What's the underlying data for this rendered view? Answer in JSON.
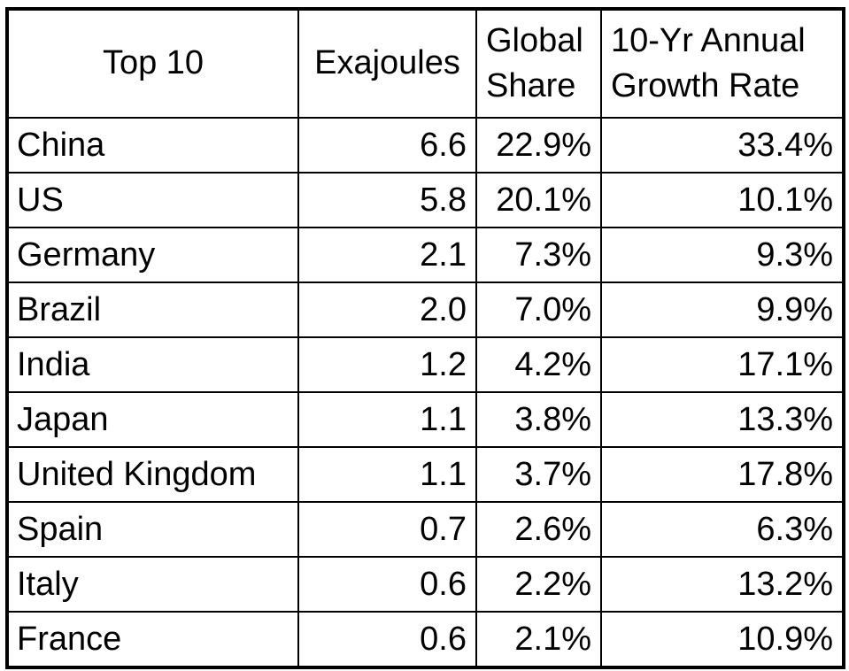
{
  "table": {
    "columns": [
      {
        "key": "country",
        "label": "Top 10",
        "align": "left"
      },
      {
        "key": "exajoules",
        "label": "Exajoules",
        "align": "num"
      },
      {
        "key": "global_share",
        "label": "Global Share",
        "align": "num"
      },
      {
        "key": "growth_rate",
        "label": "10-Yr Annual Growth Rate",
        "align": "num"
      }
    ],
    "rows": [
      {
        "country": "China",
        "exajoules": "6.6",
        "global_share": "22.9%",
        "growth_rate": "33.4%"
      },
      {
        "country": "US",
        "exajoules": "5.8",
        "global_share": "20.1%",
        "growth_rate": "10.1%"
      },
      {
        "country": "Germany",
        "exajoules": "2.1",
        "global_share": "7.3%",
        "growth_rate": "9.3%"
      },
      {
        "country": "Brazil",
        "exajoules": "2.0",
        "global_share": "7.0%",
        "growth_rate": "9.9%"
      },
      {
        "country": "India",
        "exajoules": "1.2",
        "global_share": "4.2%",
        "growth_rate": "17.1%"
      },
      {
        "country": "Japan",
        "exajoules": "1.1",
        "global_share": "3.8%",
        "growth_rate": "13.3%"
      },
      {
        "country": "United Kingdom",
        "exajoules": "1.1",
        "global_share": "3.7%",
        "growth_rate": "17.8%"
      },
      {
        "country": "Spain",
        "exajoules": "0.7",
        "global_share": "2.6%",
        "growth_rate": "6.3%"
      },
      {
        "country": "Italy",
        "exajoules": "0.6",
        "global_share": "2.2%",
        "growth_rate": "13.2%"
      },
      {
        "country": "France",
        "exajoules": "0.6",
        "global_share": "2.1%",
        "growth_rate": "10.9%"
      }
    ],
    "border_color": "#000000",
    "background_color": "#ffffff"
  },
  "chart_data": {
    "type": "table",
    "title": "Top 10",
    "columns": [
      "Top 10",
      "Exajoules",
      "Global Share",
      "10-Yr Annual Growth Rate"
    ],
    "categories": [
      "China",
      "US",
      "Germany",
      "Brazil",
      "India",
      "Japan",
      "United Kingdom",
      "Spain",
      "Italy",
      "France"
    ],
    "series": [
      {
        "name": "Exajoules",
        "values": [
          6.6,
          5.8,
          2.1,
          2.0,
          1.2,
          1.1,
          1.1,
          0.7,
          0.6,
          0.6
        ]
      },
      {
        "name": "Global Share (%)",
        "values": [
          22.9,
          20.1,
          7.3,
          7.0,
          4.2,
          3.8,
          3.7,
          2.6,
          2.2,
          2.1
        ]
      },
      {
        "name": "10-Yr Annual Growth Rate (%)",
        "values": [
          33.4,
          10.1,
          9.3,
          9.9,
          17.1,
          13.3,
          17.8,
          6.3,
          13.2,
          10.9
        ]
      }
    ]
  }
}
